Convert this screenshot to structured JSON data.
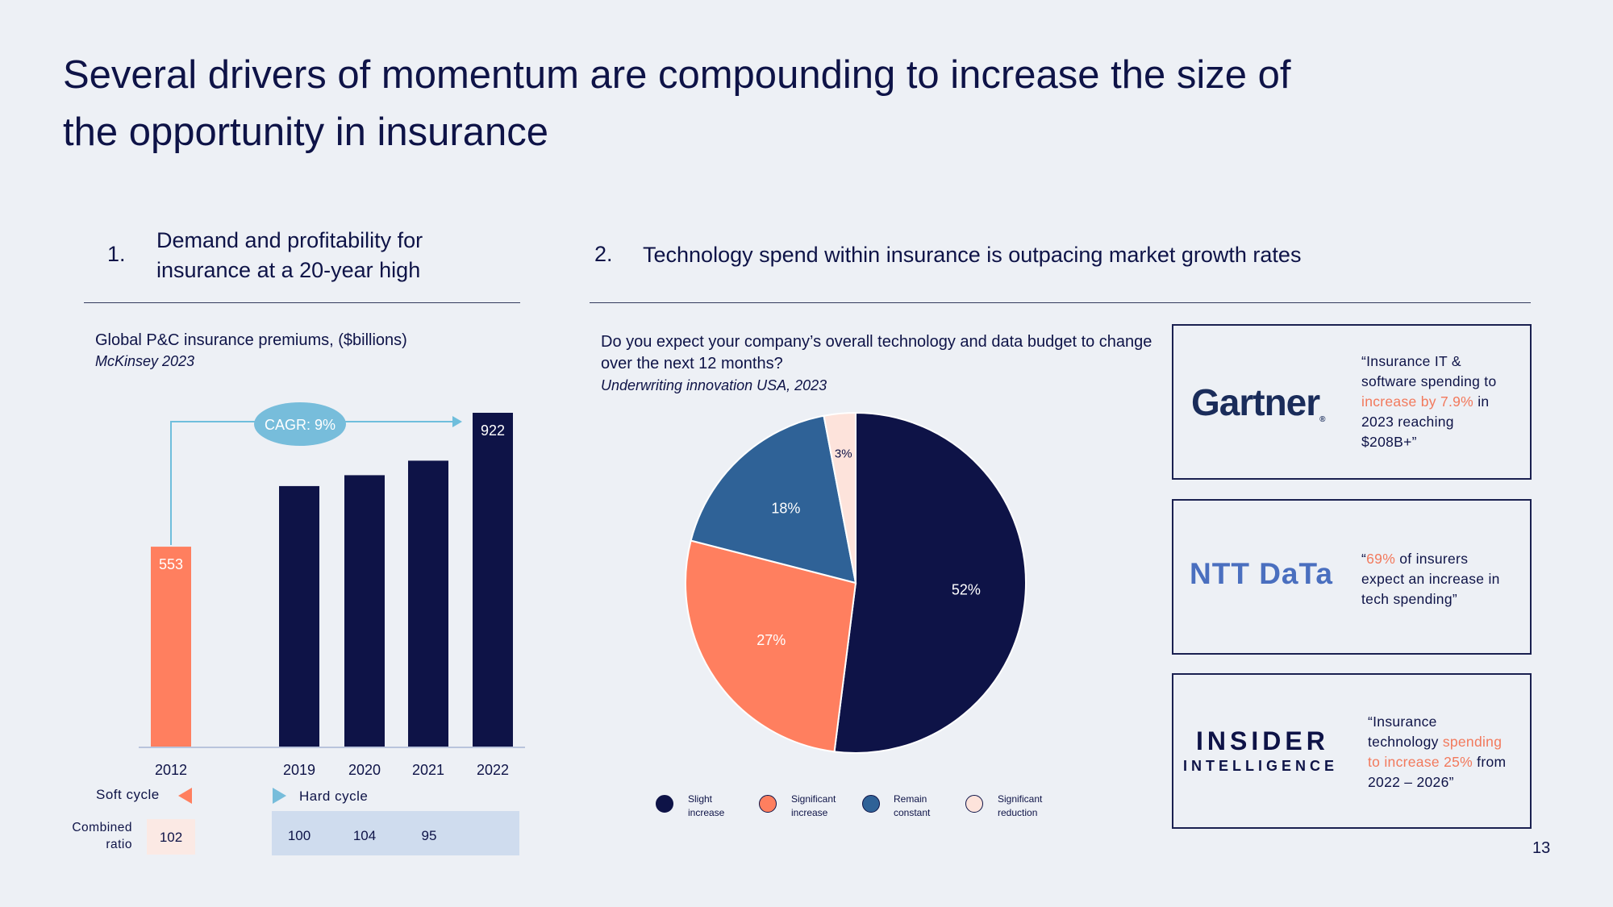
{
  "title": "Several drivers of momentum are compounding to  increase the size of the opportunity in insurance",
  "section1": {
    "num": "1.",
    "text": "Demand and profitability for insurance at a 20-year high"
  },
  "section2": {
    "num": "2.",
    "text": "Technology spend within insurance is outpacing market growth rates"
  },
  "chart_data": [
    {
      "type": "bar",
      "title": "Global P&C insurance premiums, ($billions)",
      "source": "McKinsey 2023",
      "categories": [
        "2012",
        "2019",
        "2020",
        "2021",
        "2022"
      ],
      "values": [
        553,
        720,
        750,
        790,
        922
      ],
      "data_labels": [
        "553",
        "",
        "",
        "",
        "922"
      ],
      "ylim": [
        0,
        922
      ],
      "colors": [
        "#ff7f5f",
        "#0e1347",
        "#0e1347",
        "#0e1347",
        "#0e1347"
      ],
      "annotation": "CAGR: 9%",
      "cycles": {
        "soft": "Soft cycle",
        "hard": "Hard cycle",
        "combined_ratio_label": "Combined ratio",
        "soft_ratio": "102",
        "hard_ratios": [
          "100",
          "104",
          "95"
        ]
      }
    },
    {
      "type": "pie",
      "title": "Do you expect your company’s overall technology and data budget to change over the next 12 months?",
      "source": "Underwriting  innovation USA, 2023",
      "slices": [
        {
          "label": "Slight increase",
          "value": 52,
          "text": "52%",
          "color": "#0e1347"
        },
        {
          "label": "Significant increase",
          "value": 27,
          "text": "27%",
          "color": "#ff7f5f"
        },
        {
          "label": "Remain constant",
          "value": 18,
          "text": "18%",
          "color": "#2f6297"
        },
        {
          "label": "Significant reduction",
          "value": 3,
          "text": "3%",
          "color": "#fde3db"
        }
      ]
    }
  ],
  "legend": [
    {
      "l1": "Slight",
      "l2": "increase",
      "color": "#0e1347"
    },
    {
      "l1": "Significant",
      "l2": "increase",
      "color": "#ff7f5f"
    },
    {
      "l1": "Remain",
      "l2": "constant",
      "color": "#2f6297"
    },
    {
      "l1": "Significant",
      "l2": "reduction",
      "color": "#fde3db"
    }
  ],
  "cards": {
    "gartner": {
      "logo": "Gartner",
      "reg": "®",
      "q1": "“Insurance IT &",
      "q2": "software spending to",
      "q3_hl": "increase by 7.9%",
      "q3_rest": " in",
      "q4": "2023 reaching",
      "q5": "$208B+”"
    },
    "ntt": {
      "logo": "NTT DaTa",
      "q1_pre": "“",
      "q1_hl": "69%",
      "q1_rest": " of insurers",
      "q2": "expect an increase in",
      "q3": "tech spending”"
    },
    "insider": {
      "logo1": "INSIDER",
      "logo2": "INTELLIGENCE",
      "q1": "“Insurance",
      "q2_pre": "technology ",
      "q2_hl": "spending",
      "q3_hl": "to increase 25%",
      "q3_rest": " from",
      "q4": "2022 – 2026”"
    }
  },
  "page_number": "13"
}
